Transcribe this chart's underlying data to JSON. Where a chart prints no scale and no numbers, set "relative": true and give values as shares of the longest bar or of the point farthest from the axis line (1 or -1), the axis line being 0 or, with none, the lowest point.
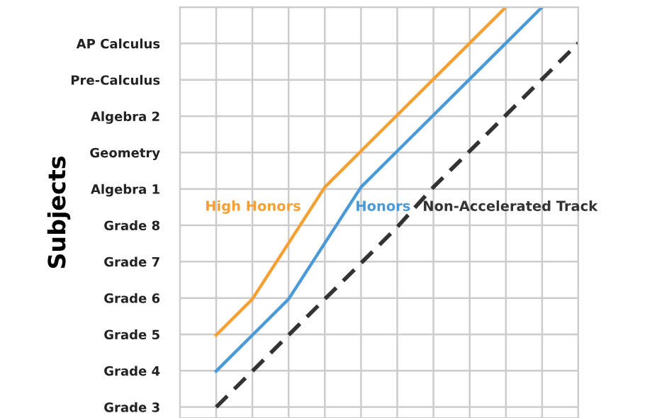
{
  "chart_data": {
    "type": "line",
    "ylabel": "Subjects",
    "categories": [
      null,
      null,
      null,
      null,
      null,
      null,
      null,
      null,
      null,
      null,
      null,
      null
    ],
    "y_categories": [
      "Grade 3",
      "Grade 4",
      "Grade 5",
      "Grade 6",
      "Grade 7",
      "Grade 8",
      "Algebra 1",
      "Geometry",
      "Algebra 2",
      "Pre-Calculus",
      "AP Calculus",
      null
    ],
    "tick_labels": "y",
    "relative": true,
    "grid": true,
    "legend": false,
    "marker": "none",
    "series": [
      {
        "name": "High Honors",
        "color": "#f5a033",
        "line_style": "solid",
        "values": [
          null,
          0.18,
          0.27,
          0.41,
          0.55,
          0.64,
          0.73,
          0.82,
          0.91,
          1,
          null,
          null
        ]
      },
      {
        "name": "Honors",
        "color": "#4a9ad8",
        "line_style": "solid",
        "values": [
          null,
          0.09,
          0.18,
          0.27,
          0.41,
          0.55,
          0.64,
          0.73,
          0.82,
          0.91,
          1,
          null
        ]
      },
      {
        "name": "Non-Accelerated Track",
        "color": "#333333",
        "line_style": "dashed",
        "values": [
          null,
          0,
          0.09,
          0.18,
          0.27,
          0.36,
          0.45,
          0.55,
          0.64,
          0.73,
          0.82,
          0.91
        ]
      }
    ]
  }
}
